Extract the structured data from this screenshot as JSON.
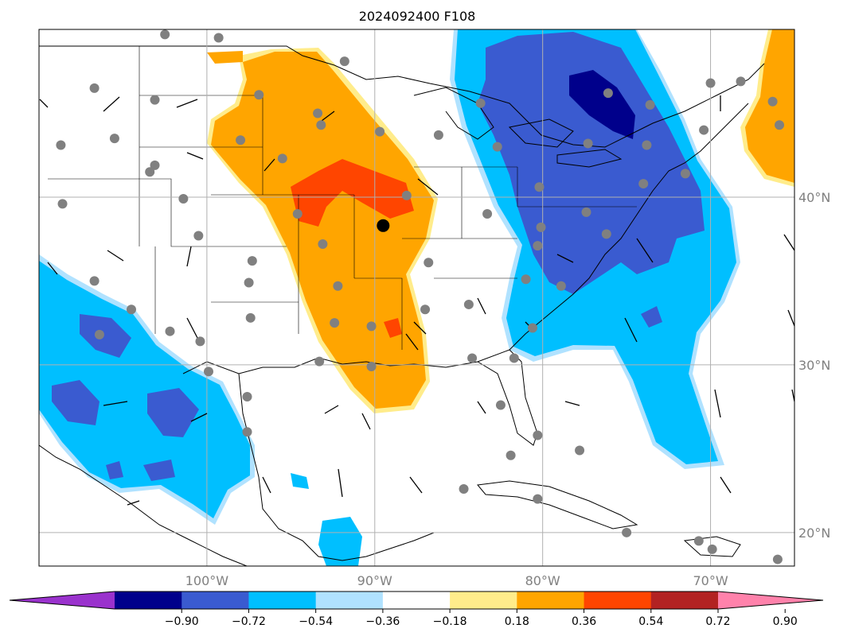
{
  "title": "2024092400 F108",
  "map": {
    "lon_range": [
      -110,
      -65
    ],
    "lat_range": [
      18,
      50
    ],
    "lon_ticks": [
      {
        "value": -100,
        "label": "100°W"
      },
      {
        "value": -90,
        "label": "90°W"
      },
      {
        "value": -80,
        "label": "80°W"
      },
      {
        "value": -70,
        "label": "70°W"
      }
    ],
    "lat_ticks": [
      {
        "value": 40,
        "label": "40°N"
      },
      {
        "value": 30,
        "label": "30°N"
      },
      {
        "value": 20,
        "label": "20°N"
      }
    ],
    "grid": true,
    "highlight_point": {
      "lon": -89.5,
      "lat": 38.3
    },
    "stations": [
      [
        -106.7,
        46.5
      ],
      [
        -102.5,
        49.7
      ],
      [
        -99.3,
        49.5
      ],
      [
        -103.1,
        45.8
      ],
      [
        -105.5,
        43.5
      ],
      [
        -108.7,
        43.1
      ],
      [
        -103.4,
        41.5
      ],
      [
        -101.4,
        39.9
      ],
      [
        -108.6,
        39.6
      ],
      [
        -103.1,
        41.9
      ],
      [
        -100.5,
        37.7
      ],
      [
        -98.0,
        43.4
      ],
      [
        -95.5,
        42.3
      ],
      [
        -93.4,
        45.0
      ],
      [
        -94.6,
        39.0
      ],
      [
        -93.1,
        37.2
      ],
      [
        -97.3,
        36.2
      ],
      [
        -97.5,
        34.9
      ],
      [
        -92.2,
        34.7
      ],
      [
        -92.4,
        32.5
      ],
      [
        -93.3,
        30.2
      ],
      [
        -97.4,
        32.8
      ],
      [
        -97.6,
        28.1
      ],
      [
        -97.6,
        26.0
      ],
      [
        -100.4,
        31.4
      ],
      [
        -102.2,
        32.0
      ],
      [
        -106.4,
        31.8
      ],
      [
        -106.7,
        35.0
      ],
      [
        -104.5,
        33.3
      ],
      [
        -99.9,
        29.6
      ],
      [
        -96.9,
        46.1
      ],
      [
        -91.8,
        48.1
      ],
      [
        -93.2,
        44.3
      ],
      [
        -89.7,
        43.9
      ],
      [
        -90.2,
        32.3
      ],
      [
        -90.2,
        29.9
      ],
      [
        -88.1,
        40.1
      ],
      [
        -86.2,
        43.7
      ],
      [
        -83.7,
        45.6
      ],
      [
        -86.8,
        36.1
      ],
      [
        -87.0,
        33.3
      ],
      [
        -84.4,
        33.6
      ],
      [
        -84.2,
        30.4
      ],
      [
        -81.7,
        30.4
      ],
      [
        -82.5,
        27.6
      ],
      [
        -80.3,
        25.8
      ],
      [
        -81.9,
        24.6
      ],
      [
        -77.8,
        24.9
      ],
      [
        -83.3,
        39.0
      ],
      [
        -81.0,
        35.1
      ],
      [
        -80.6,
        32.2
      ],
      [
        -78.9,
        34.7
      ],
      [
        -80.3,
        37.1
      ],
      [
        -80.1,
        38.2
      ],
      [
        -80.2,
        40.6
      ],
      [
        -82.7,
        43.0
      ],
      [
        -77.3,
        43.2
      ],
      [
        -76.1,
        46.2
      ],
      [
        -73.6,
        45.5
      ],
      [
        -73.8,
        43.1
      ],
      [
        -71.5,
        41.4
      ],
      [
        -74.0,
        40.8
      ],
      [
        -77.4,
        39.1
      ],
      [
        -76.2,
        37.8
      ],
      [
        -70.4,
        44.0
      ],
      [
        -68.2,
        46.9
      ],
      [
        -66.3,
        45.7
      ],
      [
        -65.9,
        44.3
      ],
      [
        -70.0,
        46.8
      ],
      [
        -84.7,
        22.6
      ],
      [
        -80.3,
        22.0
      ],
      [
        -69.9,
        19.0
      ],
      [
        -66.0,
        18.4
      ],
      [
        -75.0,
        20.0
      ],
      [
        -70.7,
        19.5
      ]
    ]
  },
  "colorbar": {
    "ticks": [
      "−0.90",
      "−0.72",
      "−0.54",
      "−0.36",
      "−0.18",
      "0.18",
      "0.36",
      "0.54",
      "0.72",
      "0.90"
    ],
    "colors": [
      "#9a32cd",
      "#00008b",
      "#3a5bd0",
      "#00bfff",
      "#b0e2ff",
      "#ffffff",
      "#ffec8b",
      "#ffa500",
      "#ff4500",
      "#b22222",
      "#ff82ab"
    ]
  }
}
